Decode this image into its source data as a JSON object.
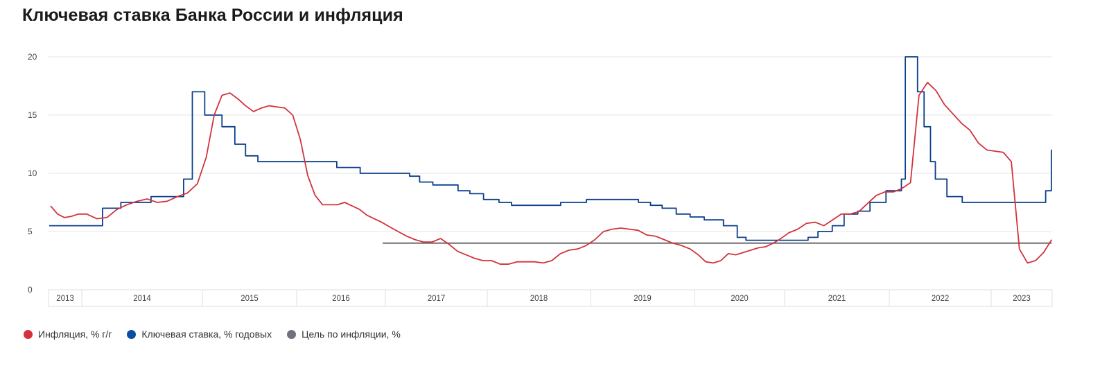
{
  "chart_data": {
    "type": "line",
    "title": "Ключевая ставка Банка России и инфляция",
    "xlabel": "",
    "ylabel": "",
    "ylim": [
      0,
      20
    ],
    "yticks": [
      "0",
      "5",
      "10",
      "15",
      "20"
    ],
    "xticks": [
      "2013",
      "2014",
      "2015",
      "2016",
      "2017",
      "2018",
      "2019",
      "2020",
      "2021",
      "2022",
      "2023"
    ],
    "grid": true,
    "legend_position": "bottom-left",
    "colors": {
      "inflation": "#d2323c",
      "key_rate": "#0b3f8c",
      "target": "#6f6f6f"
    },
    "series": [
      {
        "name": "Инфляция, % г/г",
        "kind": "monthly",
        "points": [
          [
            "2013-08",
            7.2
          ],
          [
            "2013-09",
            6.5
          ],
          [
            "2013-10",
            6.2
          ],
          [
            "2013-11",
            6.3
          ],
          [
            "2013-12",
            6.5
          ],
          [
            "2014-01",
            6.5
          ],
          [
            "2014-02",
            6.1
          ],
          [
            "2014-03",
            6.2
          ],
          [
            "2014-04",
            6.9
          ],
          [
            "2014-05",
            7.3
          ],
          [
            "2014-06",
            7.6
          ],
          [
            "2014-07",
            7.8
          ],
          [
            "2014-08",
            7.5
          ],
          [
            "2014-09",
            7.6
          ],
          [
            "2014-10",
            8.0
          ],
          [
            "2014-11",
            8.3
          ],
          [
            "2014-12",
            9.1
          ],
          [
            "2015-01",
            11.4
          ],
          [
            "2015-02",
            15.0
          ],
          [
            "2015-03",
            16.7
          ],
          [
            "2015-04",
            16.9
          ],
          [
            "2015-05",
            16.4
          ],
          [
            "2015-06",
            15.8
          ],
          [
            "2015-07",
            15.3
          ],
          [
            "2015-08",
            15.6
          ],
          [
            "2015-09",
            15.8
          ],
          [
            "2015-10",
            15.7
          ],
          [
            "2015-11",
            15.6
          ],
          [
            "2015-12",
            15.0
          ],
          [
            "2016-01",
            12.9
          ],
          [
            "2016-02",
            9.8
          ],
          [
            "2016-03",
            8.1
          ],
          [
            "2016-04",
            7.3
          ],
          [
            "2016-05",
            7.3
          ],
          [
            "2016-06",
            7.3
          ],
          [
            "2016-07",
            7.5
          ],
          [
            "2016-08",
            7.2
          ],
          [
            "2016-09",
            6.9
          ],
          [
            "2016-10",
            6.4
          ],
          [
            "2016-11",
            6.1
          ],
          [
            "2016-12",
            5.8
          ],
          [
            "2017-01",
            5.4
          ],
          [
            "2017-02",
            5.0
          ],
          [
            "2017-03",
            4.6
          ],
          [
            "2017-04",
            4.3
          ],
          [
            "2017-05",
            4.1
          ],
          [
            "2017-06",
            4.1
          ],
          [
            "2017-07",
            4.4
          ],
          [
            "2017-08",
            3.9
          ],
          [
            "2017-09",
            3.3
          ],
          [
            "2017-10",
            3.0
          ],
          [
            "2017-11",
            2.7
          ],
          [
            "2017-12",
            2.5
          ],
          [
            "2018-01",
            2.5
          ],
          [
            "2018-02",
            2.2
          ],
          [
            "2018-03",
            2.2
          ],
          [
            "2018-04",
            2.4
          ],
          [
            "2018-05",
            2.4
          ],
          [
            "2018-06",
            2.4
          ],
          [
            "2018-07",
            2.3
          ],
          [
            "2018-08",
            2.5
          ],
          [
            "2018-09",
            3.1
          ],
          [
            "2018-10",
            3.4
          ],
          [
            "2018-11",
            3.5
          ],
          [
            "2018-12",
            3.8
          ],
          [
            "2019-01",
            4.3
          ],
          [
            "2019-02",
            5.0
          ],
          [
            "2019-03",
            5.2
          ],
          [
            "2019-04",
            5.3
          ],
          [
            "2019-05",
            5.2
          ],
          [
            "2019-06",
            5.1
          ],
          [
            "2019-07",
            4.7
          ],
          [
            "2019-08",
            4.6
          ],
          [
            "2019-09",
            4.3
          ],
          [
            "2019-10",
            4.0
          ],
          [
            "2019-11",
            3.8
          ],
          [
            "2019-12",
            3.5
          ],
          [
            "2020-01",
            3.0
          ],
          [
            "2020-02",
            2.4
          ],
          [
            "2020-03",
            2.3
          ],
          [
            "2020-04",
            2.5
          ],
          [
            "2020-05",
            3.1
          ],
          [
            "2020-06",
            3.0
          ],
          [
            "2020-07",
            3.2
          ],
          [
            "2020-08",
            3.4
          ],
          [
            "2020-09",
            3.6
          ],
          [
            "2020-10",
            3.7
          ],
          [
            "2020-11",
            4.0
          ],
          [
            "2020-12",
            4.4
          ],
          [
            "2021-01",
            4.9
          ],
          [
            "2021-02",
            5.2
          ],
          [
            "2021-03",
            5.7
          ],
          [
            "2021-04",
            5.8
          ],
          [
            "2021-05",
            5.5
          ],
          [
            "2021-06",
            6.0
          ],
          [
            "2021-07",
            6.5
          ],
          [
            "2021-08",
            6.5
          ],
          [
            "2021-09",
            6.7
          ],
          [
            "2021-10",
            7.4
          ],
          [
            "2021-11",
            8.1
          ],
          [
            "2021-12",
            8.4
          ],
          [
            "2022-01",
            8.4
          ],
          [
            "2022-02",
            8.7
          ],
          [
            "2022-03",
            9.2
          ],
          [
            "2022-04",
            16.7
          ],
          [
            "2022-05",
            17.8
          ],
          [
            "2022-06",
            17.1
          ],
          [
            "2022-07",
            15.9
          ],
          [
            "2022-08",
            15.1
          ],
          [
            "2022-09",
            14.3
          ],
          [
            "2022-10",
            13.7
          ],
          [
            "2022-11",
            12.6
          ],
          [
            "2022-12",
            12.0
          ],
          [
            "2023-01",
            11.9
          ],
          [
            "2023-02",
            11.8
          ],
          [
            "2023-03",
            11.0
          ],
          [
            "2023-04",
            3.5
          ],
          [
            "2023-05",
            2.3
          ],
          [
            "2023-06",
            2.5
          ],
          [
            "2023-07",
            3.2
          ],
          [
            "2023-08",
            4.3
          ]
        ]
      },
      {
        "name": "Ключевая ставка, % годовых",
        "kind": "step",
        "points": [
          [
            "2013-08-10",
            5.5
          ],
          [
            "2014-03-03",
            7.0
          ],
          [
            "2014-04-28",
            7.5
          ],
          [
            "2014-07-28",
            8.0
          ],
          [
            "2014-11-05",
            9.5
          ],
          [
            "2014-12-01",
            17.0
          ],
          [
            "2015-01-10",
            15.0
          ],
          [
            "2015-03-16",
            14.0
          ],
          [
            "2015-05-05",
            12.5
          ],
          [
            "2015-06-16",
            11.5
          ],
          [
            "2015-08-03",
            11.0
          ],
          [
            "2016-06-14",
            10.5
          ],
          [
            "2016-09-19",
            10.0
          ],
          [
            "2017-03-27",
            9.75
          ],
          [
            "2017-05-02",
            9.25
          ],
          [
            "2017-06-19",
            9.0
          ],
          [
            "2017-09-18",
            8.5
          ],
          [
            "2017-10-30",
            8.25
          ],
          [
            "2017-12-18",
            7.75
          ],
          [
            "2018-02-12",
            7.5
          ],
          [
            "2018-03-26",
            7.25
          ],
          [
            "2018-09-17",
            7.5
          ],
          [
            "2018-12-17",
            7.75
          ],
          [
            "2019-06-17",
            7.5
          ],
          [
            "2019-07-29",
            7.25
          ],
          [
            "2019-09-09",
            7.0
          ],
          [
            "2019-10-28",
            6.5
          ],
          [
            "2019-12-16",
            6.25
          ],
          [
            "2020-02-10",
            6.0
          ],
          [
            "2020-04-27",
            5.5
          ],
          [
            "2020-06-22",
            4.5
          ],
          [
            "2020-07-27",
            4.25
          ],
          [
            "2021-03-22",
            4.5
          ],
          [
            "2021-04-26",
            5.0
          ],
          [
            "2021-06-15",
            5.5
          ],
          [
            "2021-07-26",
            6.5
          ],
          [
            "2021-09-13",
            6.75
          ],
          [
            "2021-10-25",
            7.5
          ],
          [
            "2021-12-20",
            8.5
          ],
          [
            "2022-02-14",
            9.5
          ],
          [
            "2022-02-28",
            20.0
          ],
          [
            "2022-04-11",
            17.0
          ],
          [
            "2022-05-04",
            14.0
          ],
          [
            "2022-05-27",
            11.0
          ],
          [
            "2022-06-14",
            9.5
          ],
          [
            "2022-07-25",
            8.0
          ],
          [
            "2022-09-19",
            7.5
          ],
          [
            "2023-07-24",
            8.5
          ],
          [
            "2023-08-15",
            12.0
          ]
        ],
        "end": "2023-08-16"
      },
      {
        "name": "Цель по инфляции, %",
        "kind": "flat",
        "points": [
          [
            "2016-12-20",
            4.0
          ],
          [
            "2023-08-16",
            4.0
          ]
        ]
      }
    ]
  }
}
